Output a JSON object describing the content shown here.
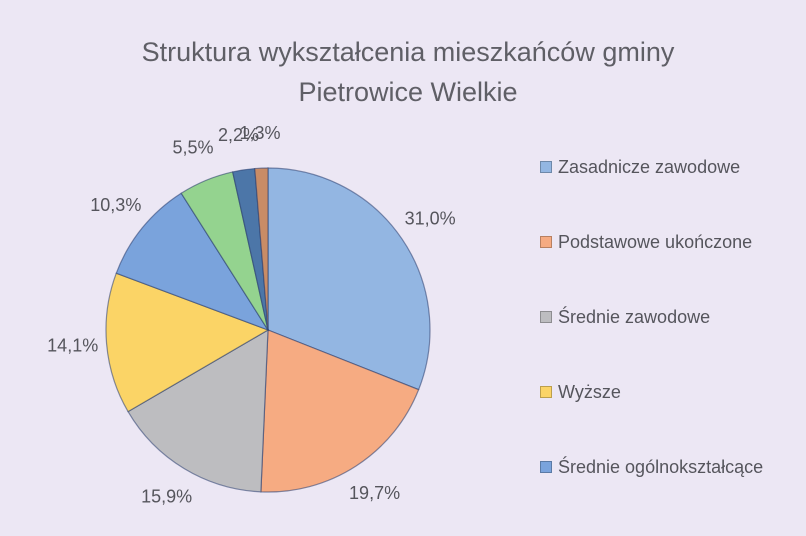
{
  "chart_data": {
    "type": "pie",
    "title": "Struktura wykształcenia mieszkańców gminy Pietrowice Wielkie",
    "categories": [
      "Zasadnicze zawodowe",
      "Podstawowe ukończone",
      "Średnie zawodowe",
      "Wyższe",
      "Średnie ogólnokształcące",
      null,
      null,
      null
    ],
    "values": [
      31.0,
      19.7,
      15.9,
      14.1,
      10.3,
      5.5,
      2.2,
      1.3
    ],
    "value_labels": [
      "31,0%",
      "19,7%",
      "15,9%",
      "14,1%",
      "10,3%",
      "5,5%",
      "2,2%",
      "1,3%"
    ],
    "colors": [
      "#93b6e2",
      "#f6ab82",
      "#bdbdc0",
      "#fbd466",
      "#7aa3dc",
      "#94d38f",
      "#4c76a8",
      "#c98c66"
    ],
    "legend": "right"
  }
}
